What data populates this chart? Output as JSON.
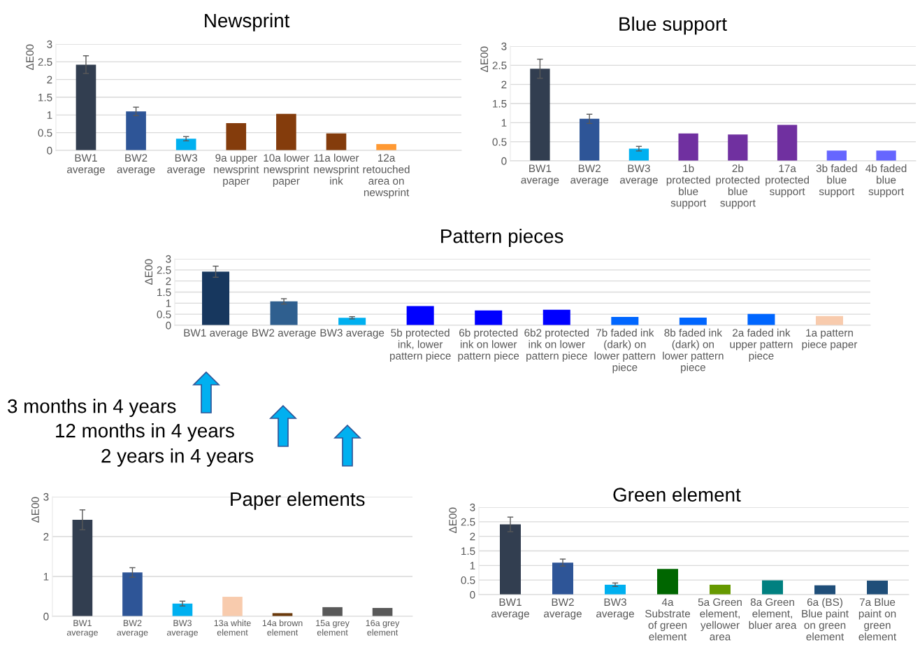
{
  "chart_data": [
    {
      "type": "bar",
      "title": "Newsprint",
      "ylabel": "ΔE00",
      "categories": [
        "BW1 average",
        "BW2 average",
        "BW3 average",
        "9a upper newsprint paper",
        "10a lower newsprint paper",
        "11a lower newsprint ink",
        "12a retouched area on newsprint"
      ],
      "values": [
        2.42,
        1.1,
        0.33,
        0.77,
        1.03,
        0.48,
        0.18
      ],
      "colors": [
        "#323e50",
        "#2e5597",
        "#00b0f0",
        "#843c0c",
        "#843c0c",
        "#843c0c",
        "#ff9933"
      ],
      "errors": [
        0.25,
        0.12,
        0.06,
        null,
        null,
        null,
        null
      ],
      "ylim": [
        0,
        3
      ],
      "yticks": [
        0,
        0.5,
        1,
        1.5,
        2,
        2.5,
        3
      ],
      "grid": "y"
    },
    {
      "type": "bar",
      "title": "Blue support",
      "ylabel": "ΔE00",
      "categories": [
        "BW1 average",
        "BW2 average",
        "BW3 average",
        "1b protected blue support",
        "2b protected blue support",
        "17a protected support",
        "3b faded blue support",
        "4b faded blue support"
      ],
      "values": [
        2.41,
        1.1,
        0.32,
        0.72,
        0.69,
        0.94,
        0.27,
        0.27
      ],
      "colors": [
        "#323e50",
        "#2e5597",
        "#00b0f0",
        "#7030a0",
        "#7030a0",
        "#7030a0",
        "#6666ff",
        "#6666ff"
      ],
      "errors": [
        0.25,
        0.12,
        0.06,
        null,
        null,
        null,
        null,
        null
      ],
      "ylim": [
        0,
        3
      ],
      "yticks": [
        0,
        0.5,
        1,
        1.5,
        2,
        2.5,
        3
      ],
      "grid": "y"
    },
    {
      "type": "bar",
      "title": "Pattern pieces",
      "ylabel": "ΔE00",
      "categories": [
        "BW1 average",
        "BW2 average",
        "BW3 average",
        "5b protected ink, lower pattern piece",
        "6b protected ink on lower pattern piece",
        "6b2 protected ink on lower pattern piece",
        "7b faded ink (dark) on lower pattern piece",
        "8b faded ink (dark) on lower pattern piece",
        "2a faded ink upper pattern piece",
        "1a pattern piece paper"
      ],
      "values": [
        2.42,
        1.08,
        0.34,
        0.87,
        0.67,
        0.7,
        0.38,
        0.35,
        0.51,
        0.42
      ],
      "colors": [
        "#17375e",
        "#2f5f8f",
        "#00b0f0",
        "#0000ff",
        "#0000ff",
        "#0000ff",
        "#0066ff",
        "#0066ff",
        "#0066ff",
        "#f8cbad"
      ],
      "errors": [
        0.25,
        0.12,
        0.05,
        null,
        null,
        null,
        null,
        null,
        null,
        null
      ],
      "ylim": [
        0,
        3
      ],
      "yticks": [
        0,
        0.5,
        1,
        1.5,
        2,
        2.5,
        3
      ],
      "grid": "y"
    },
    {
      "type": "bar",
      "title": "Paper elements",
      "ylabel": "ΔE00",
      "categories": [
        "BW1 average",
        "BW2 average",
        "BW3 average",
        "13a white element",
        "14a brown element",
        "15a grey element",
        "16a grey element"
      ],
      "values": [
        2.42,
        1.1,
        0.32,
        0.49,
        0.08,
        0.23,
        0.21
      ],
      "colors": [
        "#323e50",
        "#2e5597",
        "#00b0f0",
        "#f8cbad",
        "#6b3a0c",
        "#595959",
        "#595959"
      ],
      "errors": [
        0.25,
        0.12,
        0.06,
        null,
        null,
        null,
        null
      ],
      "ylim": [
        0,
        3
      ],
      "yticks": [
        0,
        1,
        2,
        3
      ],
      "grid": "y"
    },
    {
      "type": "bar",
      "title": "Green element",
      "ylabel": "ΔE00",
      "categories": [
        "BW1 average",
        "BW2 average",
        "BW3 average",
        "4a Substrate of green element",
        "5a Green element, yellower area",
        "8a Green element, bluer area",
        "6a (BS) Blue paint on green element",
        "7a Blue paint on green element"
      ],
      "values": [
        2.41,
        1.1,
        0.34,
        0.88,
        0.34,
        0.49,
        0.32,
        0.48
      ],
      "colors": [
        "#323e50",
        "#2e5597",
        "#00b0f0",
        "#006600",
        "#669900",
        "#008080",
        "#1f4e79",
        "#1f4e79"
      ],
      "errors": [
        0.25,
        0.12,
        0.06,
        null,
        null,
        null,
        null,
        null
      ],
      "ylim": [
        0,
        3
      ],
      "yticks": [
        0,
        0.5,
        1,
        1.5,
        2,
        2.5,
        3
      ],
      "grid": "y"
    },
    {
      "type": "other",
      "annotations": [
        "3 months in 4 years",
        "12 months in 4 years",
        "2 years in 4 years"
      ]
    }
  ]
}
